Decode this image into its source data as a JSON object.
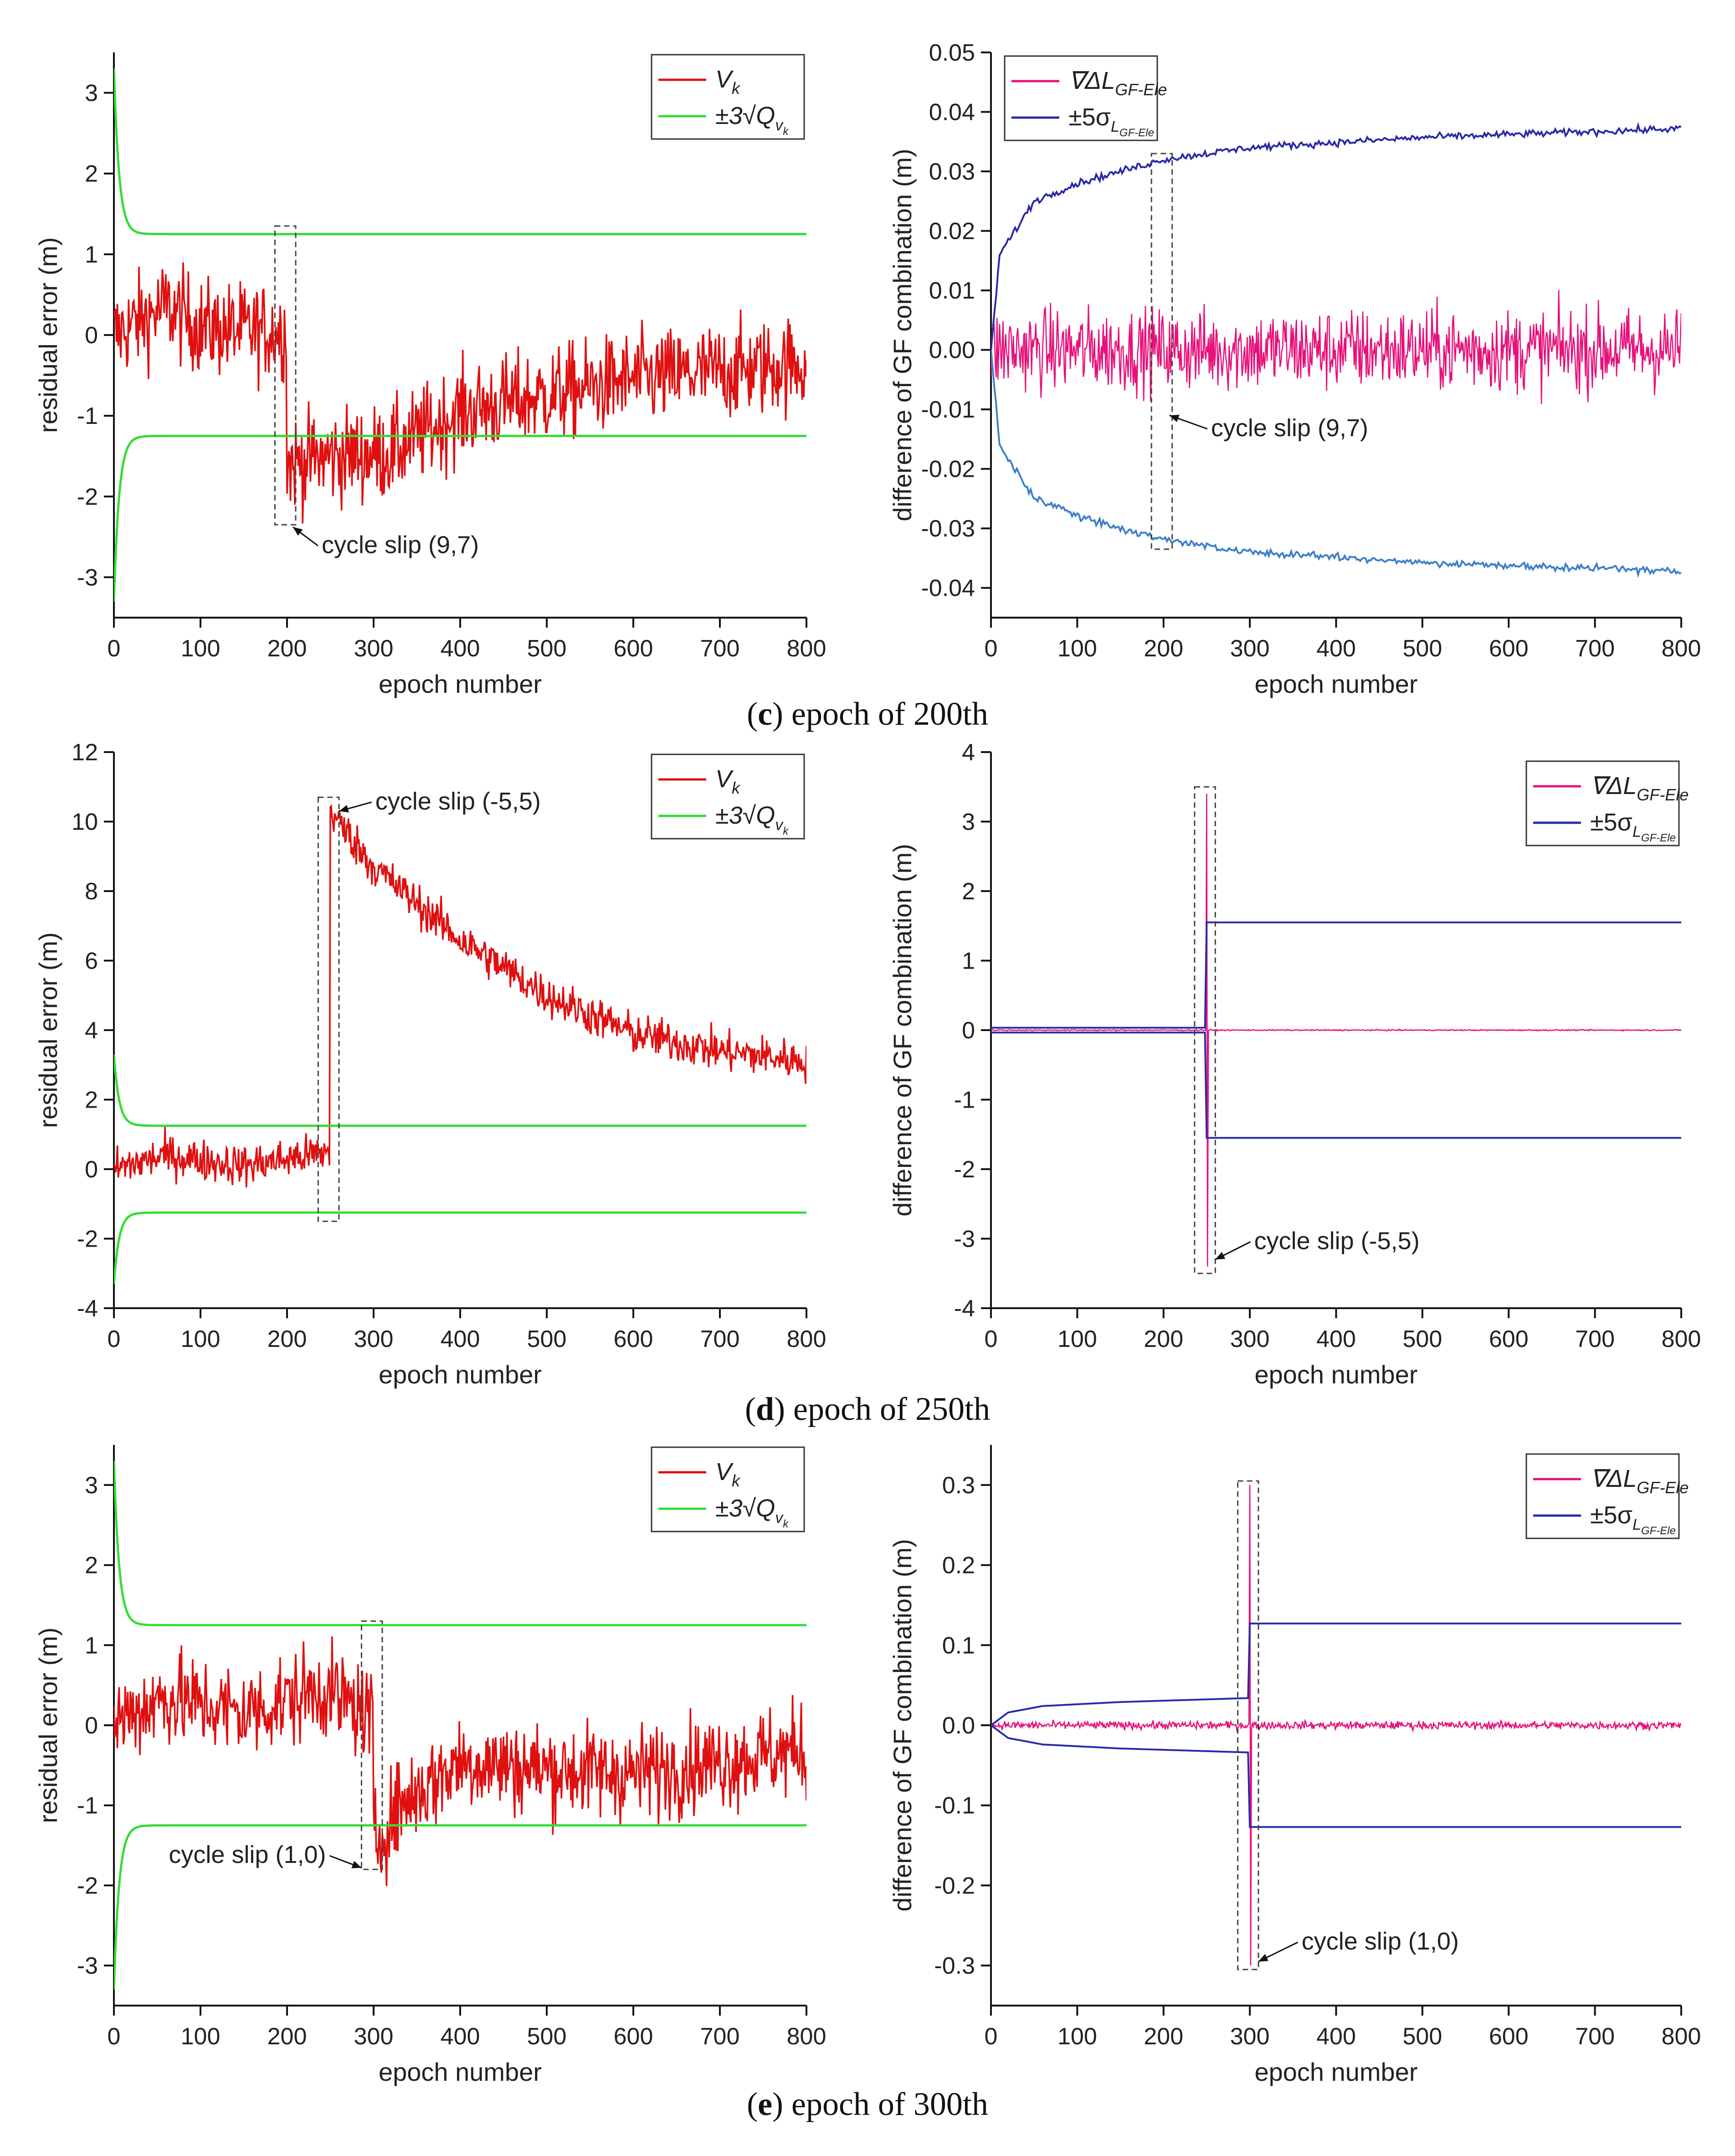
{
  "colors": {
    "residual": "#e01010",
    "threshold": "#33dd33",
    "gf_diff": "#e8107a",
    "sigma": "#2a2aa8",
    "sigma_lower_row_c": "#3d7fc9",
    "dashed_box": "#444444"
  },
  "captions": [
    {
      "letter": "c",
      "text": ") epoch of 200th"
    },
    {
      "letter": "d",
      "text": ") epoch of 250th"
    },
    {
      "letter": "e",
      "text": ") epoch of 300th"
    }
  ],
  "chart_data": [
    {
      "id": "c-left",
      "type": "line",
      "row": "c",
      "side": "left",
      "xlabel": "epoch number",
      "ylabel": "residual error (m)",
      "xlim": [
        0,
        800
      ],
      "ylim": [
        -3.5,
        3.5
      ],
      "xticks": [
        "0",
        "100",
        "200",
        "300",
        "400",
        "500",
        "600",
        "700",
        "800"
      ],
      "yticks": [
        "-3",
        "-2",
        "-1",
        "0",
        "1",
        "2",
        "3"
      ],
      "legend": [
        "V",
        "k",
        "±3√Q",
        "v",
        "k"
      ],
      "annotation": {
        "text": "cycle slip (9,7)",
        "epoch": 200
      },
      "series": [
        {
          "name": "Vk",
          "kind": "residual",
          "slip_epoch": 200,
          "before": [
            {
              "x": 0,
              "y": 0.0
            },
            {
              "x": 60,
              "y": 0.35
            },
            {
              "x": 100,
              "y": 0.1
            },
            {
              "x": 150,
              "y": 0.05
            },
            {
              "x": 200,
              "y": 0.05
            }
          ],
          "after": [
            {
              "x": 200,
              "y": -1.6
            },
            {
              "x": 250,
              "y": -1.5
            },
            {
              "x": 320,
              "y": -1.45
            },
            {
              "x": 400,
              "y": -0.95
            },
            {
              "x": 500,
              "y": -0.75
            },
            {
              "x": 600,
              "y": -0.55
            },
            {
              "x": 700,
              "y": -0.45
            },
            {
              "x": 800,
              "y": -0.35
            }
          ],
          "noise_sd": 0.3
        },
        {
          "name": "±3√Qvk",
          "kind": "envelope",
          "start": 3.3,
          "end": 1.25,
          "sym": true
        }
      ]
    },
    {
      "id": "c-right",
      "type": "line",
      "row": "c",
      "side": "right",
      "xlabel": "epoch number",
      "ylabel": "difference of GF combination (m)",
      "xlim": [
        0,
        800
      ],
      "ylim": [
        -0.045,
        0.05
      ],
      "xticks": [
        "0",
        "100",
        "200",
        "300",
        "400",
        "500",
        "600",
        "700",
        "800"
      ],
      "yticks": [
        "-0.04",
        "-0.03",
        "-0.02",
        "-0.01",
        "0.00",
        "0.01",
        "0.02",
        "0.03",
        "0.04",
        "0.05"
      ],
      "legend": [
        "∇ΔL",
        "GF-Ele",
        "±5σ",
        "L",
        "GF-Ele"
      ],
      "annotation": {
        "text": "cycle slip (9,7)",
        "epoch": 200
      },
      "series": [
        {
          "name": "∇ΔLGF-Ele",
          "kind": "noise",
          "mean": 0.0,
          "sd": 0.0035
        },
        {
          "name": "±5σLGF-Ele",
          "kind": "sigma_grow",
          "points": [
            {
              "x": 0,
              "y": 0.0
            },
            {
              "x": 10,
              "y": 0.016
            },
            {
              "x": 50,
              "y": 0.025
            },
            {
              "x": 100,
              "y": 0.028
            },
            {
              "x": 200,
              "y": 0.032
            },
            {
              "x": 300,
              "y": 0.034
            },
            {
              "x": 500,
              "y": 0.0357
            },
            {
              "x": 800,
              "y": 0.0372
            }
          ]
        }
      ]
    },
    {
      "id": "d-left",
      "type": "line",
      "row": "d",
      "side": "left",
      "xlabel": "epoch number",
      "ylabel": "residual error (m)",
      "xlim": [
        0,
        800
      ],
      "ylim": [
        -4,
        12
      ],
      "xticks": [
        "0",
        "100",
        "200",
        "300",
        "400",
        "500",
        "600",
        "700",
        "800"
      ],
      "yticks": [
        "-4",
        "-2",
        "0",
        "2",
        "4",
        "6",
        "8",
        "10",
        "12"
      ],
      "legend": [
        "V",
        "k",
        "±3√Q",
        "v",
        "k"
      ],
      "annotation": {
        "text": "cycle slip (-5,5)",
        "epoch": 250
      },
      "series": [
        {
          "name": "Vk",
          "kind": "residual",
          "slip_epoch": 250,
          "before": [
            {
              "x": 0,
              "y": 0.0
            },
            {
              "x": 60,
              "y": 0.4
            },
            {
              "x": 150,
              "y": 0.1
            },
            {
              "x": 250,
              "y": 0.5
            }
          ],
          "after": [
            {
              "x": 250,
              "y": 10.3
            },
            {
              "x": 300,
              "y": 8.7
            },
            {
              "x": 400,
              "y": 6.6
            },
            {
              "x": 500,
              "y": 5.0
            },
            {
              "x": 600,
              "y": 3.9
            },
            {
              "x": 700,
              "y": 3.4
            },
            {
              "x": 800,
              "y": 3.1
            }
          ],
          "noise_sd": 0.3
        },
        {
          "name": "±3√Qvk",
          "kind": "envelope",
          "start": 3.3,
          "end": 1.25,
          "sym": true
        }
      ]
    },
    {
      "id": "d-right",
      "type": "line",
      "row": "d",
      "side": "right",
      "xlabel": "epoch number",
      "ylabel": "difference of GF combination (m)",
      "xlim": [
        0,
        800
      ],
      "ylim": [
        -4,
        4
      ],
      "xticks": [
        "0",
        "100",
        "200",
        "300",
        "400",
        "500",
        "600",
        "700",
        "800"
      ],
      "yticks": [
        "-4",
        "-3",
        "-2",
        "-1",
        "0",
        "1",
        "2",
        "3",
        "4"
      ],
      "legend": [
        "∇ΔL",
        "GF-Ele",
        "±5σ",
        "L",
        "GF-Ele"
      ],
      "annotation": {
        "text": "cycle slip (-5,5)",
        "epoch": 250
      },
      "series": [
        {
          "name": "∇ΔLGF-Ele",
          "kind": "noise",
          "mean": 0.0,
          "sd": 0.004,
          "spike_epoch": 250,
          "spike_hi": 3.4,
          "spike_lo": -3.4
        },
        {
          "name": "±5σLGF-Ele",
          "kind": "sigma_step",
          "pre": 0.035,
          "post": 1.55,
          "step_epoch": 250
        }
      ]
    },
    {
      "id": "e-left",
      "type": "line",
      "row": "e",
      "side": "left",
      "xlabel": "epoch number",
      "ylabel": "residual error (m)",
      "xlim": [
        0,
        800
      ],
      "ylim": [
        -3.5,
        3.5
      ],
      "xticks": [
        "0",
        "100",
        "200",
        "300",
        "400",
        "500",
        "600",
        "700",
        "800"
      ],
      "yticks": [
        "-3",
        "-2",
        "-1",
        "0",
        "1",
        "2",
        "3"
      ],
      "legend": [
        "V",
        "k",
        "±3√Q",
        "v",
        "k"
      ],
      "annotation": {
        "text": "cycle slip (1,0)",
        "epoch": 300
      },
      "series": [
        {
          "name": "Vk",
          "kind": "residual",
          "slip_epoch": 300,
          "before": [
            {
              "x": 0,
              "y": 0.05
            },
            {
              "x": 60,
              "y": 0.35
            },
            {
              "x": 150,
              "y": 0.15
            },
            {
              "x": 240,
              "y": 0.45
            },
            {
              "x": 300,
              "y": 0.1
            }
          ],
          "after": [
            {
              "x": 300,
              "y": -1.5
            },
            {
              "x": 330,
              "y": -1.0
            },
            {
              "x": 400,
              "y": -0.45
            },
            {
              "x": 500,
              "y": -0.55
            },
            {
              "x": 600,
              "y": -0.6
            },
            {
              "x": 700,
              "y": -0.45
            },
            {
              "x": 800,
              "y": -0.3
            }
          ],
          "noise_sd": 0.3
        },
        {
          "name": "±3√Qvk",
          "kind": "envelope",
          "start": 3.3,
          "end": 1.25,
          "sym": true
        }
      ]
    },
    {
      "id": "e-right",
      "type": "line",
      "row": "e",
      "side": "right",
      "xlabel": "epoch number",
      "ylabel": "difference of GF combination (m)",
      "xlim": [
        0,
        800
      ],
      "ylim": [
        -0.35,
        0.35
      ],
      "xticks": [
        "0",
        "100",
        "200",
        "300",
        "400",
        "500",
        "600",
        "700",
        "800"
      ],
      "yticks": [
        "-0.3",
        "-0.2",
        "-0.1",
        "0.0",
        "0.1",
        "0.2",
        "0.3"
      ],
      "legend": [
        "∇ΔL",
        "GF-Ele",
        "±5σ",
        "L",
        "GF-Ele"
      ],
      "annotation": {
        "text": "cycle slip (1,0)",
        "epoch": 300
      },
      "series": [
        {
          "name": "∇ΔLGF-Ele",
          "kind": "noise",
          "mean": 0.0,
          "sd": 0.0025,
          "spike_epoch": 300,
          "spike_hi": 0.3,
          "spike_lo": -0.3
        },
        {
          "name": "±5σLGF-Ele",
          "kind": "sigma_step",
          "pre_curve": [
            {
              "x": 0,
              "y": 0.0
            },
            {
              "x": 20,
              "y": 0.016
            },
            {
              "x": 60,
              "y": 0.024
            },
            {
              "x": 150,
              "y": 0.029
            },
            {
              "x": 300,
              "y": 0.034
            }
          ],
          "post": 0.127,
          "step_epoch": 300
        }
      ]
    }
  ]
}
